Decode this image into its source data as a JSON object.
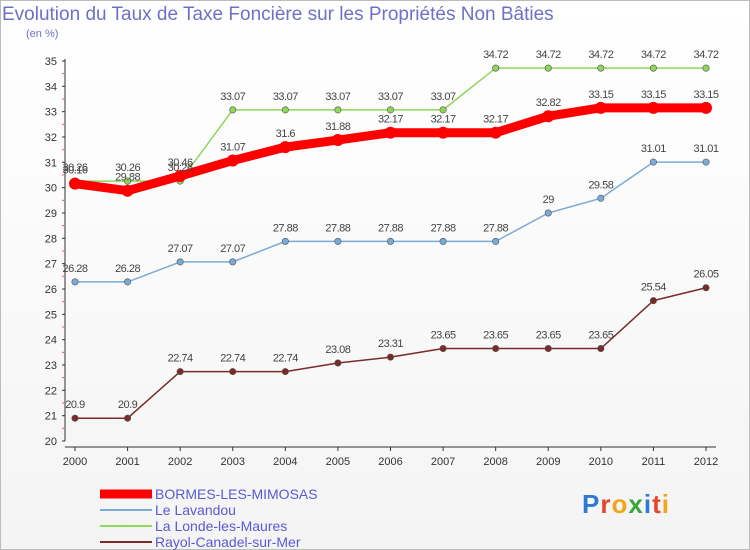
{
  "header": {
    "title": "Evolution du Taux de Taxe Foncière sur les Propriétés Non Bâties",
    "subtitle": "(en %)"
  },
  "chart_data": {
    "type": "line",
    "x": [
      "2000",
      "2001",
      "2002",
      "2003",
      "2004",
      "2005",
      "2006",
      "2007",
      "2008",
      "2009",
      "2010",
      "2011",
      "2012"
    ],
    "ylim": [
      20,
      35
    ],
    "yticks": [
      20,
      21,
      22,
      23,
      24,
      25,
      26,
      27,
      28,
      29,
      30,
      31,
      32,
      33,
      34,
      35
    ],
    "grid": false,
    "legend": "bottom-left",
    "series": [
      {
        "name": "BORMES-LES-MIMOSAS",
        "color": "#ff0000",
        "values": [
          30.16,
          29.88,
          30.46,
          31.07,
          31.6,
          31.88,
          32.17,
          32.17,
          32.17,
          32.82,
          33.15,
          33.15,
          33.15
        ],
        "labels": [
          "30.16",
          "29.88",
          "30.46",
          "31.07",
          "31.6",
          "31.88",
          "32.17",
          "32.17",
          "32.17",
          "32.82",
          "33.15",
          "33.15",
          "33.15"
        ]
      },
      {
        "name": "Le Lavandou",
        "color": "#7aaad6",
        "values": [
          26.28,
          26.28,
          27.07,
          27.07,
          27.88,
          27.88,
          27.88,
          27.88,
          27.88,
          29,
          29.58,
          31.01,
          31.01
        ],
        "labels": [
          "26.28",
          "26.28",
          "27.07",
          "27.07",
          "27.88",
          "27.88",
          "27.88",
          "27.88",
          "27.88",
          "29",
          "29.58",
          "31.01",
          "31.01"
        ]
      },
      {
        "name": "La Londe-les-Maures",
        "color": "#8fd65a",
        "values": [
          30.26,
          30.26,
          30.26,
          33.07,
          33.07,
          33.07,
          33.07,
          33.07,
          34.72,
          34.72,
          34.72,
          34.72,
          34.72
        ],
        "labels": [
          "30.26",
          "30.26",
          "30.26",
          "33.07",
          "33.07",
          "33.07",
          "33.07",
          "33.07",
          "34.72",
          "34.72",
          "34.72",
          "34.72",
          "34.72"
        ]
      },
      {
        "name": "Rayol-Canadel-sur-Mer",
        "color": "#7a2a2a",
        "values": [
          20.9,
          20.9,
          22.74,
          22.74,
          22.74,
          23.08,
          23.31,
          23.65,
          23.65,
          23.65,
          23.65,
          25.54,
          26.05
        ],
        "labels": [
          "20.9",
          "20.9",
          "22.74",
          "22.74",
          "22.74",
          "23.08",
          "23.31",
          "23.65",
          "23.65",
          "23.65",
          "23.65",
          "25.54",
          "26.05"
        ]
      }
    ]
  },
  "logo": {
    "letters": [
      {
        "char": "P",
        "color": "#2e7bd1"
      },
      {
        "char": "r",
        "color": "#e9452c"
      },
      {
        "char": "o",
        "color": "#f2a51a"
      },
      {
        "char": "x",
        "color": "#3aa53a"
      },
      {
        "char": "i",
        "color": "#2e7bd1"
      },
      {
        "char": "t",
        "color": "#e9452c"
      },
      {
        "char": "i",
        "color": "#f2a51a"
      }
    ]
  }
}
